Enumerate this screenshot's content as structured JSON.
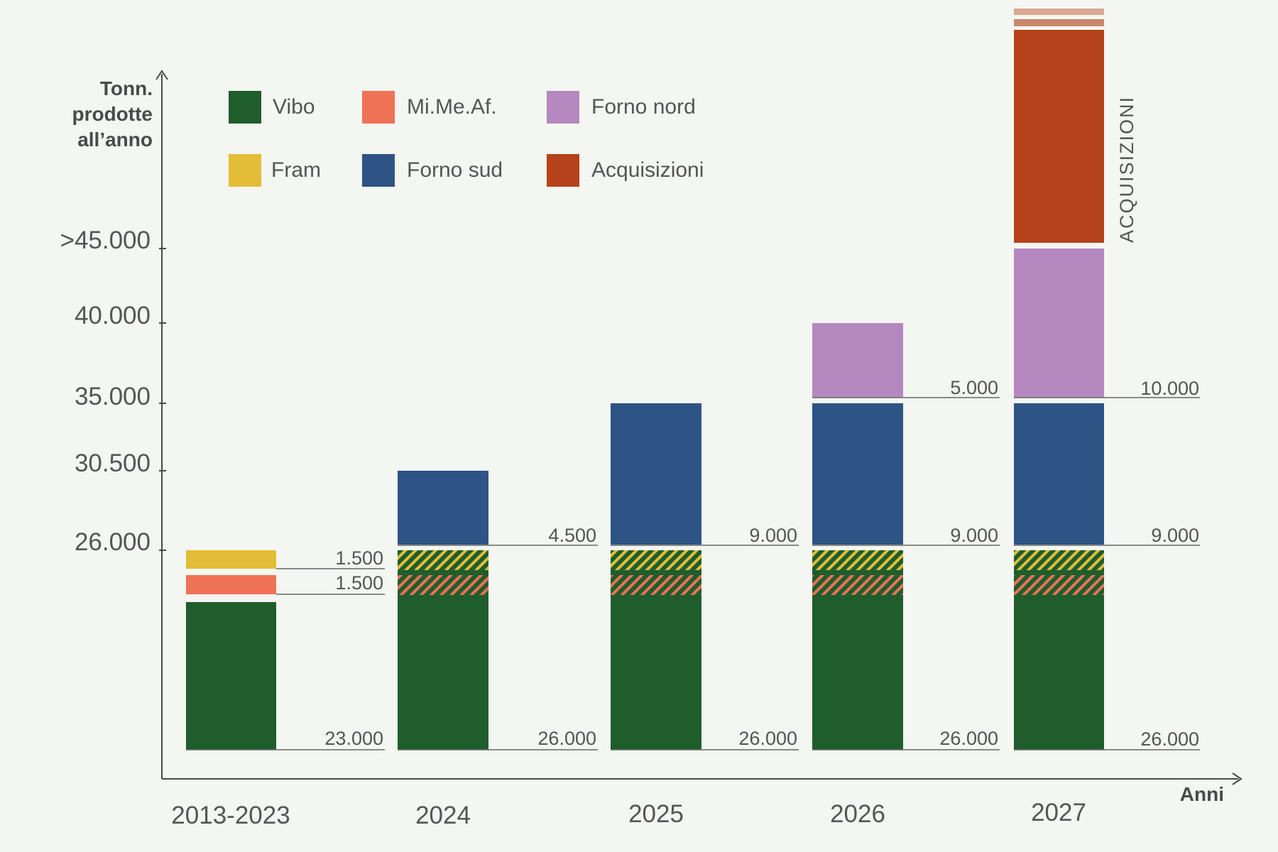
{
  "chart_data": {
    "type": "bar",
    "stacked": true,
    "y_axis_label_lines": [
      "Tonn.",
      "prodotte",
      "all’anno"
    ],
    "x_axis_label": "Anni",
    "y_ticks": [
      ">45.000",
      "40.000",
      "35.000",
      "30.500",
      "26.000"
    ],
    "categories": [
      "2013-2023",
      "2024",
      "2025",
      "2026",
      "2027"
    ],
    "legend": [
      {
        "name": "Vibo",
        "color": "#1f5e2c"
      },
      {
        "name": "Mi.Me.Af.",
        "color": "#f07256"
      },
      {
        "name": "Forno nord",
        "color": "#b589bf"
      },
      {
        "name": "Fram",
        "color": "#e3bd38"
      },
      {
        "name": "Forno sud",
        "color": "#2e5486"
      },
      {
        "name": "Acquisizioni",
        "color": "#b5421b"
      }
    ],
    "series": [
      {
        "name": "Vibo",
        "color": "#1f5e2c",
        "values": [
          23000,
          26000,
          26000,
          26000,
          26000
        ]
      },
      {
        "name": "Mi.Me.Af.",
        "color": "#f07256",
        "values": [
          1500,
          0,
          0,
          0,
          0
        ]
      },
      {
        "name": "Fram",
        "color": "#e3bd38",
        "values": [
          1500,
          0,
          0,
          0,
          0
        ]
      },
      {
        "name": "Forno sud",
        "color": "#2e5486",
        "values": [
          0,
          4500,
          9000,
          9000,
          9000
        ]
      },
      {
        "name": "Forno nord",
        "color": "#b589bf",
        "values": [
          0,
          0,
          0,
          5000,
          10000
        ]
      },
      {
        "name": "Acquisizioni",
        "color": "#b5421b",
        "values": [
          0,
          0,
          0,
          0,
          null
        ]
      }
    ],
    "bar_labels": [
      [
        "23.000",
        "1.500",
        "1.500"
      ],
      [
        "26.000",
        "4.500"
      ],
      [
        "26.000",
        "9.000"
      ],
      [
        "26.000",
        "9.000",
        "5.000"
      ],
      [
        "26.000",
        "9.000",
        "10.000"
      ]
    ],
    "annotation": "ACQUISIZIONI",
    "colors": {
      "axis": "#4a4a4a",
      "text": "#555555",
      "background": "#f3f6f1"
    }
  }
}
